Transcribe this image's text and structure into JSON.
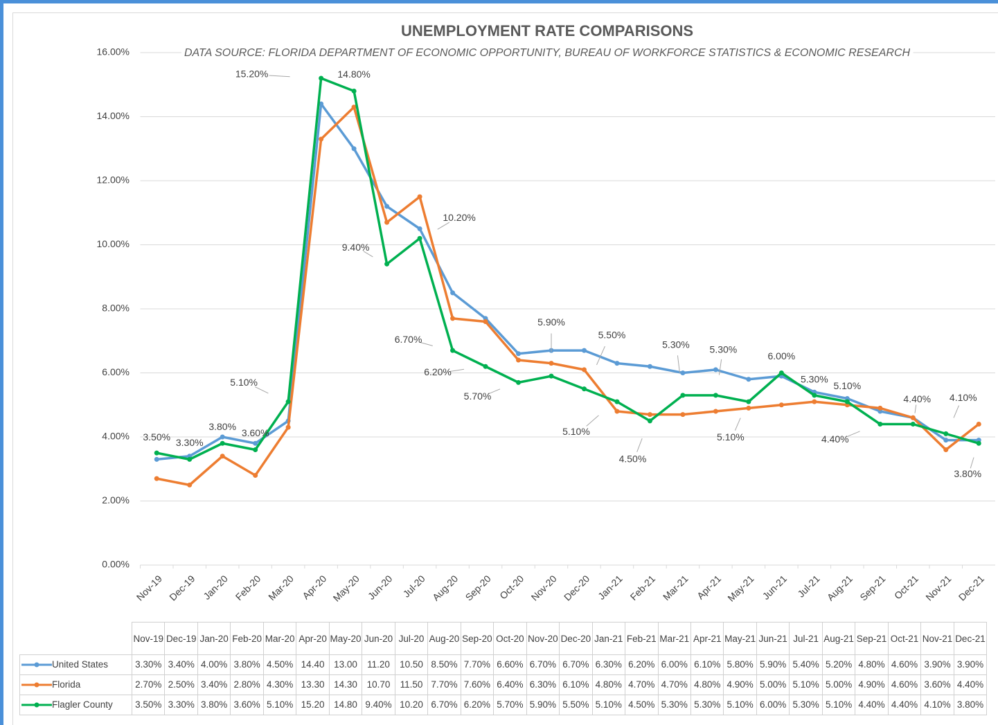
{
  "chart_data": {
    "type": "line",
    "title": "UNEMPLOYMENT RATE COMPARISONS",
    "subtitle": "DATA SOURCE:  FLORIDA DEPARTMENT OF ECONOMIC OPPORTUNITY, BUREAU  OF WORKFORCE STATISTICS & ECONOMIC RESEARCH",
    "categories": [
      "Nov-19",
      "Dec-19",
      "Jan-20",
      "Feb-20",
      "Mar-20",
      "Apr-20",
      "May-20",
      "Jun-20",
      "Jul-20",
      "Aug-20",
      "Sep-20",
      "Oct-20",
      "Nov-20",
      "Dec-20",
      "Jan-21",
      "Feb-21",
      "Mar-21",
      "Apr-21",
      "May-21",
      "Jun-21",
      "Jul-21",
      "Aug-21",
      "Sep-21",
      "Oct-21",
      "Nov-21",
      "Dec-21"
    ],
    "ylim": [
      0,
      16
    ],
    "yticks": [
      {
        "value": 0,
        "label": "0.00%"
      },
      {
        "value": 2,
        "label": "2.00%"
      },
      {
        "value": 4,
        "label": "4.00%"
      },
      {
        "value": 6,
        "label": "6.00%"
      },
      {
        "value": 8,
        "label": "8.00%"
      },
      {
        "value": 10,
        "label": "10.00%"
      },
      {
        "value": 12,
        "label": "12.00%"
      },
      {
        "value": 14,
        "label": "14.00%"
      },
      {
        "value": 16,
        "label": "16.00%"
      }
    ],
    "grid": true,
    "series": [
      {
        "name": "United States",
        "color": "#5b9bd5",
        "values": [
          3.3,
          3.4,
          4.0,
          3.8,
          4.5,
          14.4,
          13.0,
          11.2,
          10.5,
          8.5,
          7.7,
          6.6,
          6.7,
          6.7,
          6.3,
          6.2,
          6.0,
          6.1,
          5.8,
          5.9,
          5.4,
          5.2,
          4.8,
          4.6,
          3.9,
          3.9
        ],
        "table_labels": [
          "3.30%",
          "3.40%",
          "4.00%",
          "3.80%",
          "4.50%",
          "14.40",
          "13.00",
          "11.20",
          "10.50",
          "8.50%",
          "7.70%",
          "6.60%",
          "6.70%",
          "6.70%",
          "6.30%",
          "6.20%",
          "6.00%",
          "6.10%",
          "5.80%",
          "5.90%",
          "5.40%",
          "5.20%",
          "4.80%",
          "4.60%",
          "3.90%",
          "3.90%"
        ]
      },
      {
        "name": "Florida",
        "color": "#ed7d31",
        "values": [
          2.7,
          2.5,
          3.4,
          2.8,
          4.3,
          13.3,
          14.3,
          10.7,
          11.5,
          7.7,
          7.6,
          6.4,
          6.3,
          6.1,
          4.8,
          4.7,
          4.7,
          4.8,
          4.9,
          5.0,
          5.1,
          5.0,
          4.9,
          4.6,
          3.6,
          4.4
        ],
        "table_labels": [
          "2.70%",
          "2.50%",
          "3.40%",
          "2.80%",
          "4.30%",
          "13.30",
          "14.30",
          "10.70",
          "11.50",
          "7.70%",
          "7.60%",
          "6.40%",
          "6.30%",
          "6.10%",
          "4.80%",
          "4.70%",
          "4.70%",
          "4.80%",
          "4.90%",
          "5.00%",
          "5.10%",
          "5.00%",
          "4.90%",
          "4.60%",
          "3.60%",
          "4.40%"
        ]
      },
      {
        "name": "Flagler County",
        "color": "#00b050",
        "values": [
          3.5,
          3.3,
          3.8,
          3.6,
          5.1,
          15.2,
          14.8,
          9.4,
          10.2,
          6.7,
          6.2,
          5.7,
          5.9,
          5.5,
          5.1,
          4.5,
          5.3,
          5.3,
          5.1,
          6.0,
          5.3,
          5.1,
          4.4,
          4.4,
          4.1,
          3.8
        ],
        "value_labels": [
          "3.50%",
          "3.30%",
          "3.80%",
          "3.60%",
          "5.10%",
          "15.20%",
          "14.80%",
          "9.40%",
          "10.20%",
          "6.70%",
          "6.20%",
          "5.70%",
          "5.90%",
          "5.50%",
          "5.10%",
          "4.50%",
          "5.30%",
          "5.30%",
          "5.10%",
          "6.00%",
          "5.30%",
          "5.10%",
          "4.40%",
          "4.40%",
          "4.10%",
          "3.80%"
        ],
        "table_labels": [
          "3.50%",
          "3.30%",
          "3.80%",
          "3.60%",
          "5.10%",
          "15.20",
          "14.80",
          "9.40%",
          "10.20",
          "6.70%",
          "6.20%",
          "5.70%",
          "5.90%",
          "5.50%",
          "5.10%",
          "4.50%",
          "5.30%",
          "5.30%",
          "5.10%",
          "6.00%",
          "5.30%",
          "5.10%",
          "4.40%",
          "4.40%",
          "4.10%",
          "3.80%"
        ]
      }
    ]
  }
}
